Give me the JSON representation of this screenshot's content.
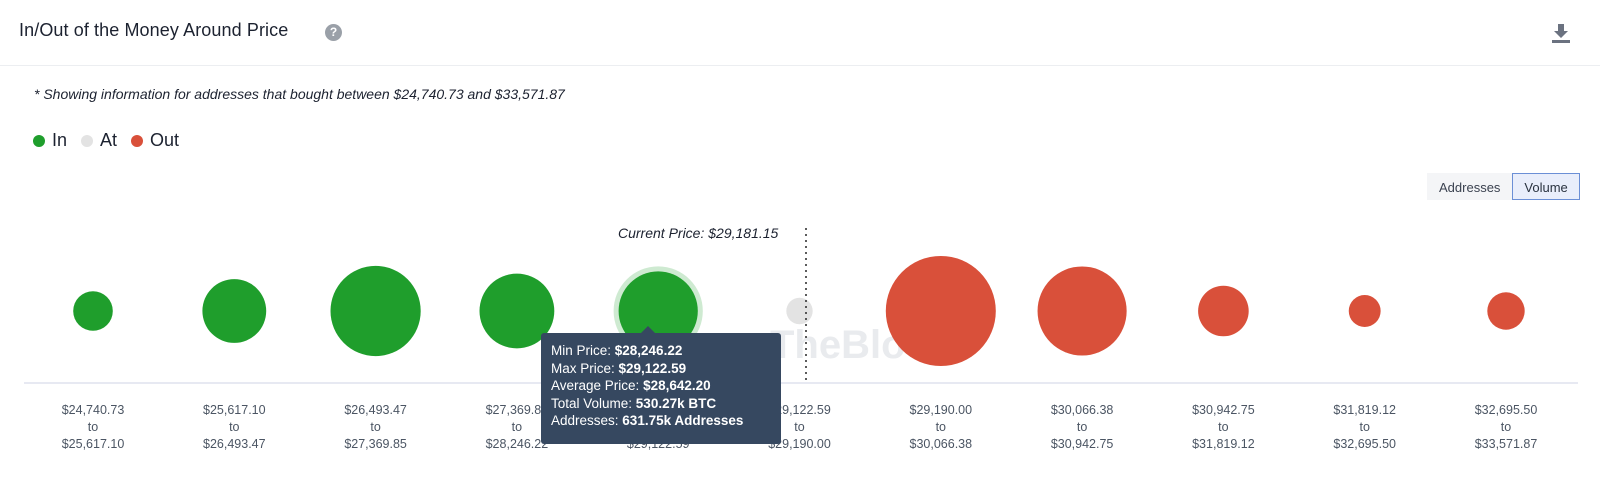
{
  "header": {
    "title": "In/Out of the Money Around Price",
    "help_icon": "question-circle-icon",
    "download_icon": "download-icon"
  },
  "note": "* Showing information for addresses that bought between $24,740.73 and $33,571.87",
  "legend": [
    {
      "label": "In",
      "color": "#1f9e2c"
    },
    {
      "label": "At",
      "color": "#e3e3e3"
    },
    {
      "label": "Out",
      "color": "#d9503a"
    }
  ],
  "toggle": {
    "options": [
      "Addresses",
      "Volume"
    ],
    "selected": "Volume"
  },
  "current_price_label": "Current Price: $29,181.15",
  "watermark": "TheBlock",
  "tooltip": {
    "min_label": "Min Price: ",
    "min_value": "$28,246.22",
    "max_label": "Max Price: ",
    "max_value": "$29,122.59",
    "avg_label": "Average Price: ",
    "avg_value": "$28,642.20",
    "vol_label": "Total Volume: ",
    "vol_value": "530.27k BTC",
    "addr_label": "Addresses: ",
    "addr_value": "631.75k Addresses"
  },
  "chart_data": {
    "type": "bubble",
    "title": "In/Out of the Money Around Price",
    "current_price": 29181.15,
    "size_metric": "Volume",
    "buckets": [
      {
        "from": "$24,740.73",
        "to": "$25,617.10",
        "status": "In",
        "size": 0.36
      },
      {
        "from": "$25,617.10",
        "to": "$26,493.47",
        "status": "In",
        "size": 0.58
      },
      {
        "from": "$26,493.47",
        "to": "$27,369.85",
        "status": "In",
        "size": 0.82
      },
      {
        "from": "$27,369.85",
        "to": "$28,246.22",
        "status": "In",
        "size": 0.68
      },
      {
        "from": "$28,246.22",
        "to": "$29,122.59",
        "status": "In",
        "size": 0.72,
        "highlighted": true
      },
      {
        "from": "$29,122.59",
        "to": "$29,190.00",
        "status": "At",
        "size": 0.24
      },
      {
        "from": "$29,190.00",
        "to": "$30,066.38",
        "status": "Out",
        "size": 1.0
      },
      {
        "from": "$30,066.38",
        "to": "$30,942.75",
        "status": "Out",
        "size": 0.81
      },
      {
        "from": "$30,942.75",
        "to": "$31,819.12",
        "status": "Out",
        "size": 0.46
      },
      {
        "from": "$31,819.12",
        "to": "$32,695.50",
        "status": "Out",
        "size": 0.29
      },
      {
        "from": "$32,695.50",
        "to": "$33,571.87",
        "status": "Out",
        "size": 0.34
      }
    ]
  }
}
